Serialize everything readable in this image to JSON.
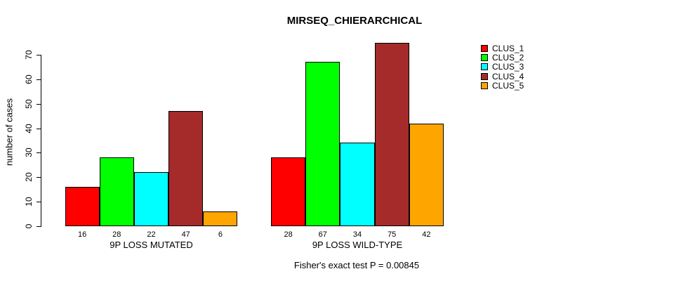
{
  "title": "MIRSEQ_CHIERARCHICAL",
  "footer": "Fisher's exact test P = 0.00845",
  "chart_data": {
    "type": "bar",
    "title": "MIRSEQ_CHIERARCHICAL",
    "ylabel": "number of cases",
    "ylim": [
      0,
      70
    ],
    "yticks": [
      0,
      10,
      20,
      30,
      40,
      50,
      60,
      70
    ],
    "grid": false,
    "legend_position": "right-outside",
    "categories": [
      "9P LOSS MUTATED",
      "9P LOSS WILD-TYPE"
    ],
    "series": [
      {
        "name": "CLUS_1",
        "color": "#FF0000",
        "values": [
          16,
          28
        ]
      },
      {
        "name": "CLUS_2",
        "color": "#00FF00",
        "values": [
          28,
          67
        ]
      },
      {
        "name": "CLUS_3",
        "color": "#00FFFF",
        "values": [
          22,
          34
        ]
      },
      {
        "name": "CLUS_4",
        "color": "#A52A2A",
        "values": [
          47,
          75
        ]
      },
      {
        "name": "CLUS_5",
        "color": "#FFA500",
        "values": [
          6,
          42
        ]
      }
    ],
    "bar_value_labels": [
      [
        16,
        28,
        22,
        47,
        6
      ],
      [
        28,
        67,
        34,
        75,
        42
      ]
    ],
    "annotation": "Fisher's exact test P = 0.00845"
  }
}
